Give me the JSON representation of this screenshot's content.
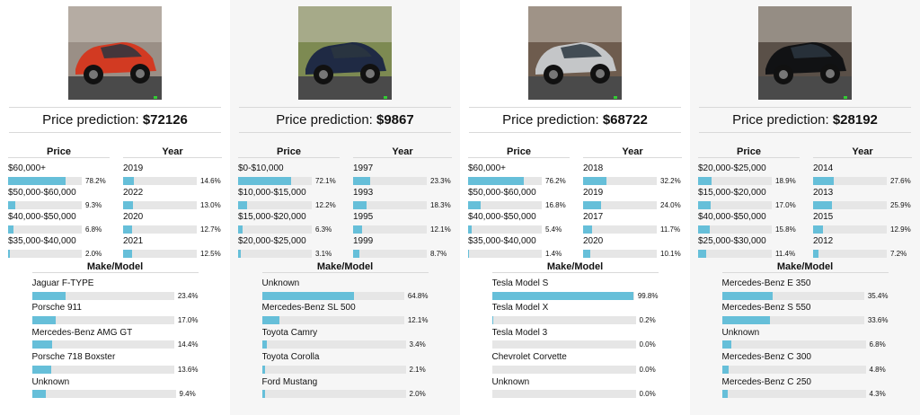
{
  "labels": {
    "prediction": "Price prediction: ",
    "price_header": "Price",
    "year_header": "Year",
    "make_header": "Make/Model"
  },
  "cars": [
    {
      "image": {
        "subject": "red-sports-car",
        "color": "#d23a22",
        "bg": "#9a8f86"
      },
      "prediction": "$72126",
      "price": [
        {
          "label": "$60,000+",
          "value": 0.782,
          "pct": "78.2%"
        },
        {
          "label": "$50,000-$60,000",
          "value": 0.093,
          "pct": "9.3%"
        },
        {
          "label": "$40,000-$50,000",
          "value": 0.068,
          "pct": "6.8%"
        },
        {
          "label": "$35,000-$40,000",
          "value": 0.02,
          "pct": "2.0%"
        }
      ],
      "year": [
        {
          "label": "2019",
          "value": 0.146,
          "pct": "14.6%"
        },
        {
          "label": "2022",
          "value": 0.13,
          "pct": "13.0%"
        },
        {
          "label": "2020",
          "value": 0.127,
          "pct": "12.7%"
        },
        {
          "label": "2021",
          "value": 0.125,
          "pct": "12.5%"
        }
      ],
      "make": [
        {
          "label": "Jaguar F-TYPE",
          "value": 0.234,
          "pct": "23.4%"
        },
        {
          "label": "Porsche 911",
          "value": 0.17,
          "pct": "17.0%"
        },
        {
          "label": "Mercedes-Benz AMG GT",
          "value": 0.144,
          "pct": "14.4%"
        },
        {
          "label": "Porsche 718 Boxster",
          "value": 0.136,
          "pct": "13.6%"
        },
        {
          "label": "Unknown",
          "value": 0.094,
          "pct": "9.4%"
        }
      ]
    },
    {
      "image": {
        "subject": "dark-blue-sedan",
        "color": "#1f2a44",
        "bg": "#7d8a52"
      },
      "prediction": "$9867",
      "price": [
        {
          "label": "$0-$10,000",
          "value": 0.721,
          "pct": "72.1%"
        },
        {
          "label": "$10,000-$15,000",
          "value": 0.122,
          "pct": "12.2%"
        },
        {
          "label": "$15,000-$20,000",
          "value": 0.063,
          "pct": "6.3%"
        },
        {
          "label": "$20,000-$25,000",
          "value": 0.031,
          "pct": "3.1%"
        }
      ],
      "year": [
        {
          "label": "1997",
          "value": 0.233,
          "pct": "23.3%"
        },
        {
          "label": "1993",
          "value": 0.183,
          "pct": "18.3%"
        },
        {
          "label": "1995",
          "value": 0.121,
          "pct": "12.1%"
        },
        {
          "label": "1999",
          "value": 0.087,
          "pct": "8.7%"
        }
      ],
      "make": [
        {
          "label": "Unknown",
          "value": 0.648,
          "pct": "64.8%"
        },
        {
          "label": "Mercedes-Benz SL 500",
          "value": 0.121,
          "pct": "12.1%"
        },
        {
          "label": "Toyota Camry",
          "value": 0.034,
          "pct": "3.4%"
        },
        {
          "label": "Toyota Corolla",
          "value": 0.021,
          "pct": "2.1%"
        },
        {
          "label": "Ford Mustang",
          "value": 0.02,
          "pct": "2.0%"
        }
      ]
    },
    {
      "image": {
        "subject": "silver-electric-sedan",
        "color": "#c4c6c8",
        "bg": "#6e5c4e"
      },
      "prediction": "$68722",
      "price": [
        {
          "label": "$60,000+",
          "value": 0.762,
          "pct": "76.2%"
        },
        {
          "label": "$50,000-$60,000",
          "value": 0.168,
          "pct": "16.8%"
        },
        {
          "label": "$40,000-$50,000",
          "value": 0.054,
          "pct": "5.4%"
        },
        {
          "label": "$35,000-$40,000",
          "value": 0.014,
          "pct": "1.4%"
        }
      ],
      "year": [
        {
          "label": "2018",
          "value": 0.322,
          "pct": "32.2%"
        },
        {
          "label": "2019",
          "value": 0.24,
          "pct": "24.0%"
        },
        {
          "label": "2017",
          "value": 0.117,
          "pct": "11.7%"
        },
        {
          "label": "2020",
          "value": 0.101,
          "pct": "10.1%"
        }
      ],
      "make": [
        {
          "label": "Tesla Model S",
          "value": 0.998,
          "pct": "99.8%"
        },
        {
          "label": "Tesla Model X",
          "value": 0.002,
          "pct": "0.2%"
        },
        {
          "label": "Tesla Model 3",
          "value": 0.0,
          "pct": "0.0%"
        },
        {
          "label": "Chevrolet Corvette",
          "value": 0.0,
          "pct": "0.0%"
        },
        {
          "label": "Unknown",
          "value": 0.0,
          "pct": "0.0%"
        }
      ]
    },
    {
      "image": {
        "subject": "black-luxury-sedan",
        "color": "#111214",
        "bg": "#5a5048"
      },
      "prediction": "$28192",
      "price": [
        {
          "label": "$20,000-$25,000",
          "value": 0.189,
          "pct": "18.9%"
        },
        {
          "label": "$15,000-$20,000",
          "value": 0.17,
          "pct": "17.0%"
        },
        {
          "label": "$40,000-$50,000",
          "value": 0.158,
          "pct": "15.8%"
        },
        {
          "label": "$25,000-$30,000",
          "value": 0.114,
          "pct": "11.4%"
        }
      ],
      "year": [
        {
          "label": "2014",
          "value": 0.276,
          "pct": "27.6%"
        },
        {
          "label": "2013",
          "value": 0.259,
          "pct": "25.9%"
        },
        {
          "label": "2015",
          "value": 0.129,
          "pct": "12.9%"
        },
        {
          "label": "2012",
          "value": 0.072,
          "pct": "7.2%"
        }
      ],
      "make": [
        {
          "label": "Mercedes-Benz E 350",
          "value": 0.354,
          "pct": "35.4%"
        },
        {
          "label": "Mercedes-Benz S 550",
          "value": 0.336,
          "pct": "33.6%"
        },
        {
          "label": "Unknown",
          "value": 0.068,
          "pct": "6.8%"
        },
        {
          "label": "Mercedes-Benz C 300",
          "value": 0.048,
          "pct": "4.8%"
        },
        {
          "label": "Mercedes-Benz C 250",
          "value": 0.043,
          "pct": "4.3%"
        }
      ]
    }
  ]
}
